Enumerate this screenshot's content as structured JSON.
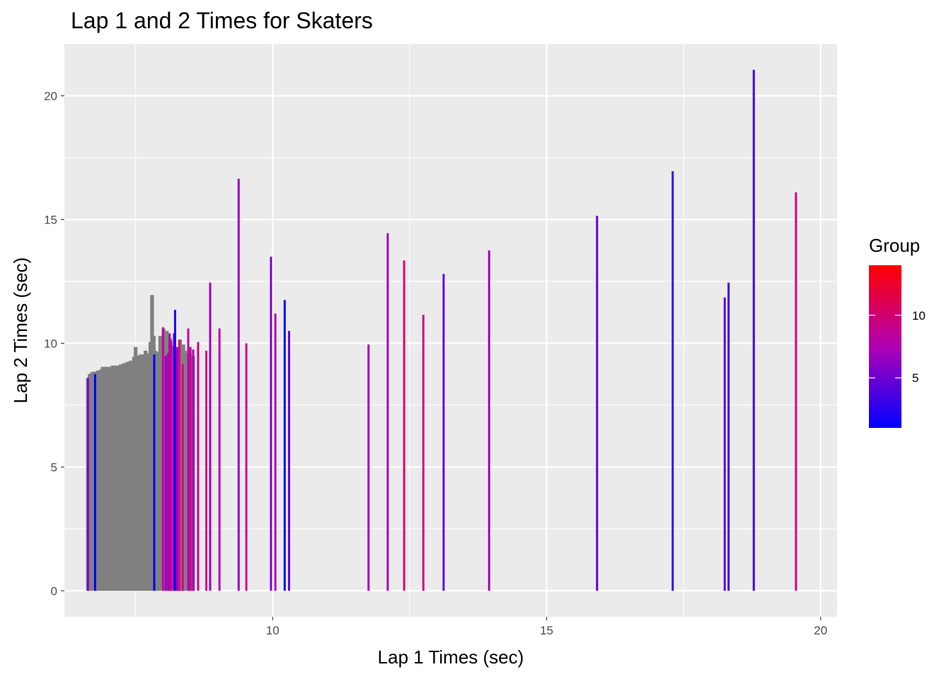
{
  "chart_data": {
    "type": "bar",
    "title": "Lap 1 and 2 Times for Skaters",
    "xlabel": "Lap 1 Times (sec)",
    "ylabel": "Lap 2 Times (sec)",
    "xlim": [
      6.2,
      20.3
    ],
    "ylim": [
      -1.05,
      22.1
    ],
    "x_ticks": [
      10,
      15,
      20
    ],
    "y_ticks": [
      0,
      5,
      10,
      15,
      20
    ],
    "grid": true,
    "legend": {
      "title": "Group",
      "position": "right",
      "type": "colorbar",
      "low_color": "#0000ff",
      "high_color": "#ff0000",
      "range": [
        1,
        14
      ],
      "ticks": [
        5,
        10
      ]
    },
    "na_color": "#808080",
    "dense_bars": {
      "color": "#808080",
      "x": [
        6.63,
        6.66,
        6.69,
        6.72,
        6.75,
        6.78,
        6.81,
        6.84,
        6.87,
        6.9,
        6.93,
        6.96,
        6.99,
        7.02,
        7.05,
        7.08,
        7.11,
        7.14,
        7.17,
        7.2,
        7.23,
        7.26,
        7.29,
        7.32,
        7.35,
        7.38,
        7.41,
        7.44,
        7.47,
        7.5,
        7.53,
        7.56,
        7.59,
        7.62,
        7.65,
        7.68,
        7.71,
        7.74,
        7.77,
        7.8,
        7.83,
        7.86,
        7.89,
        7.92,
        7.95,
        7.98,
        8.01,
        8.04,
        8.07,
        8.1,
        8.13,
        8.16,
        8.19,
        8.22,
        8.25,
        8.28,
        8.31,
        8.34,
        8.37,
        8.4,
        8.43,
        8.46,
        8.49,
        8.52,
        8.55
      ],
      "values": [
        8.6,
        8.75,
        8.8,
        8.85,
        8.8,
        8.85,
        8.9,
        8.85,
        8.95,
        9.05,
        9.0,
        9.05,
        9.0,
        9.05,
        9.0,
        9.1,
        9.05,
        9.1,
        9.05,
        9.1,
        9.15,
        9.1,
        9.2,
        9.15,
        9.25,
        9.2,
        9.3,
        9.25,
        9.45,
        9.85,
        9.4,
        9.5,
        9.55,
        9.45,
        9.55,
        9.7,
        9.6,
        9.55,
        10.05,
        11.95,
        10.3,
        9.7,
        9.6,
        9.65,
        10.3,
        9.8,
        10.6,
        10.1,
        10.5,
        10.3,
        10.2,
        9.6,
        9.9,
        9.7,
        9.3,
        9.55,
        10.15,
        9.65,
        9.95,
        9.7,
        9.55,
        9.6,
        9.6,
        9.4,
        9.5
      ]
    },
    "colored_bars": [
      {
        "x": 6.63,
        "value": 8.6,
        "group": 5
      },
      {
        "x": 6.76,
        "value": 8.75,
        "group": 1
      },
      {
        "x": 7.84,
        "value": 9.55,
        "group": 1
      },
      {
        "x": 8.0,
        "value": 10.65,
        "group": 9
      },
      {
        "x": 8.05,
        "value": 9.5,
        "group": 6
      },
      {
        "x": 8.09,
        "value": 9.6,
        "group": 8
      },
      {
        "x": 8.12,
        "value": 10.4,
        "group": 7
      },
      {
        "x": 8.15,
        "value": 10.1,
        "group": 10
      },
      {
        "x": 8.2,
        "value": 10.4,
        "group": 4
      },
      {
        "x": 8.22,
        "value": 11.35,
        "group": 2
      },
      {
        "x": 8.26,
        "value": 9.85,
        "group": 7
      },
      {
        "x": 8.3,
        "value": 10.15,
        "group": 11
      },
      {
        "x": 8.36,
        "value": 9.15,
        "group": 9
      },
      {
        "x": 8.46,
        "value": 10.6,
        "group": 8
      },
      {
        "x": 8.5,
        "value": 9.85,
        "group": 9
      },
      {
        "x": 8.55,
        "value": 9.75,
        "group": 7
      },
      {
        "x": 8.64,
        "value": 10.05,
        "group": 10
      },
      {
        "x": 8.79,
        "value": 9.7,
        "group": 10
      },
      {
        "x": 8.86,
        "value": 12.45,
        "group": 7
      },
      {
        "x": 9.03,
        "value": 10.6,
        "group": 8
      },
      {
        "x": 9.38,
        "value": 16.65,
        "group": 6
      },
      {
        "x": 9.52,
        "value": 10.0,
        "group": 10
      },
      {
        "x": 9.97,
        "value": 13.5,
        "group": 5
      },
      {
        "x": 10.05,
        "value": 11.2,
        "group": 8
      },
      {
        "x": 10.22,
        "value": 11.75,
        "group": 1
      },
      {
        "x": 10.3,
        "value": 10.5,
        "group": 4
      },
      {
        "x": 11.75,
        "value": 9.95,
        "group": 7
      },
      {
        "x": 12.1,
        "value": 14.45,
        "group": 7
      },
      {
        "x": 12.4,
        "value": 13.35,
        "group": 11
      },
      {
        "x": 12.75,
        "value": 11.15,
        "group": 10
      },
      {
        "x": 13.12,
        "value": 12.8,
        "group": 4
      },
      {
        "x": 13.95,
        "value": 13.75,
        "group": 7
      },
      {
        "x": 15.92,
        "value": 15.15,
        "group": 4
      },
      {
        "x": 17.3,
        "value": 16.95,
        "group": 3
      },
      {
        "x": 18.25,
        "value": 11.85,
        "group": 4
      },
      {
        "x": 18.32,
        "value": 12.45,
        "group": 3
      },
      {
        "x": 18.78,
        "value": 21.05,
        "group": 3
      },
      {
        "x": 19.55,
        "value": 16.1,
        "group": 10
      }
    ]
  }
}
